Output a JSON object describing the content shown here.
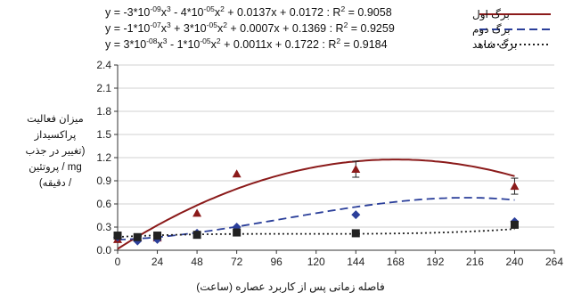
{
  "chart_data": {
    "type": "line",
    "title": "",
    "xlabel": "فاصله زمانی پس از کاربرد عصاره (ساعت)",
    "ylabel_lines": [
      "میزان فعالیت",
      "پراکسیداز",
      "(تغییر در جذب",
      "mg / پروتئین",
      "/ دقیقه)"
    ],
    "xlim": [
      0,
      264
    ],
    "ylim": [
      0.0,
      2.4
    ],
    "x_ticks": [
      "0",
      "24",
      "48",
      "72",
      "96",
      "120",
      "144",
      "168",
      "192",
      "216",
      "240",
      "264"
    ],
    "y_ticks": [
      "0.0",
      "0.3",
      "0.6",
      "0.9",
      "1.2",
      "1.5",
      "1.8",
      "2.1",
      "2.4"
    ],
    "equations": [
      "y = -3*10-09x3 - 4*10-05x2 + 0.0137x + 0.0172 : R2 = 0.9058",
      "y = -1*10-07x3 + 3*10-05x2 + 0.0007x + 0.1369 : R2 = 0.9259",
      "y = 3*10-08x3 - 1*10-05x2 + 0.0011x + 0.1722 : R2 = 0.9184"
    ],
    "legend_placement": "top-right",
    "series": [
      {
        "name": "برگ اول",
        "color": "#8b1a1a",
        "marker": "triangle",
        "line_style": "solid",
        "x": [
          0,
          12,
          24,
          48,
          72,
          144,
          240
        ],
        "y": [
          0.14,
          0.16,
          0.16,
          0.48,
          0.99,
          1.05,
          0.83
        ],
        "fit": [
          -3e-09,
          -4e-05,
          0.0137,
          0.0172
        ]
      },
      {
        "name": "برگ دوم",
        "color": "#2b3f9a",
        "marker": "diamond",
        "line_style": "dashed",
        "x": [
          0,
          12,
          24,
          48,
          72,
          144,
          240
        ],
        "y": [
          0.17,
          0.12,
          0.14,
          0.22,
          0.3,
          0.46,
          0.37
        ],
        "fit": [
          -1e-07,
          3e-05,
          0.0007,
          0.1369
        ]
      },
      {
        "name": "برگ شاهد",
        "color": "#222222",
        "marker": "square",
        "line_style": "dotted",
        "x": [
          0,
          12,
          24,
          48,
          72,
          144,
          240
        ],
        "y": [
          0.19,
          0.17,
          0.19,
          0.2,
          0.23,
          0.22,
          0.33
        ],
        "fit": [
          3e-08,
          -1e-05,
          0.0011,
          0.1722
        ]
      }
    ]
  }
}
